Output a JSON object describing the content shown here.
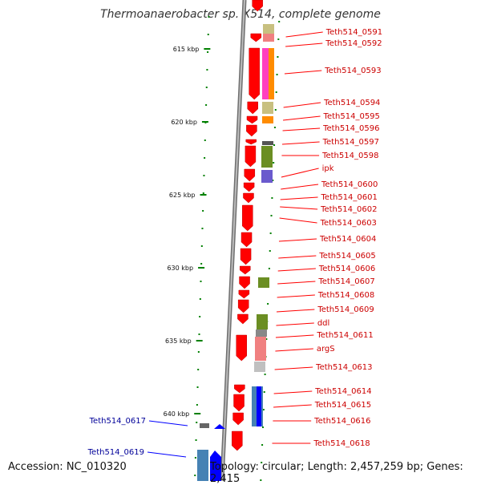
{
  "title": "Thermoanaerobacter sp. X514, complete genome",
  "footer": {
    "accession": "Accession: NC_010320",
    "topology": "Topology: circular; Length: 2,457,259 bp; Genes: 2,415"
  },
  "scale_ticks": [
    "615 kbp",
    "620 kbp",
    "625 kbp",
    "630 kbp",
    "635 kbp",
    "640 kbp"
  ],
  "forward_gene_labels": [
    "Teth514_0591",
    "Teth514_0592",
    "Teth514_0593",
    "Teth514_0594",
    "Teth514_0595",
    "Teth514_0596",
    "Teth514_0597",
    "Teth514_0598",
    "ipk",
    "Teth514_0600",
    "Teth514_0601",
    "Teth514_0602",
    "Teth514_0603",
    "Teth514_0604",
    "Teth514_0605",
    "Teth514_0606",
    "Teth514_0607",
    "Teth514_0608",
    "Teth514_0609",
    "ddl",
    "Teth514_0611",
    "argS",
    "Teth514_0613",
    "Teth514_0614",
    "Teth514_0615",
    "Teth514_0616",
    "Teth514_0618"
  ],
  "reverse_gene_labels": [
    "Teth514_0617",
    "Teth514_0619"
  ],
  "colors": {
    "forward_gene": "#ff0000",
    "reverse_gene": "#0000ff",
    "forward_label": "#cc0000",
    "reverse_label": "#000099",
    "tick_mark": "#008000",
    "backbone": "#888888"
  }
}
